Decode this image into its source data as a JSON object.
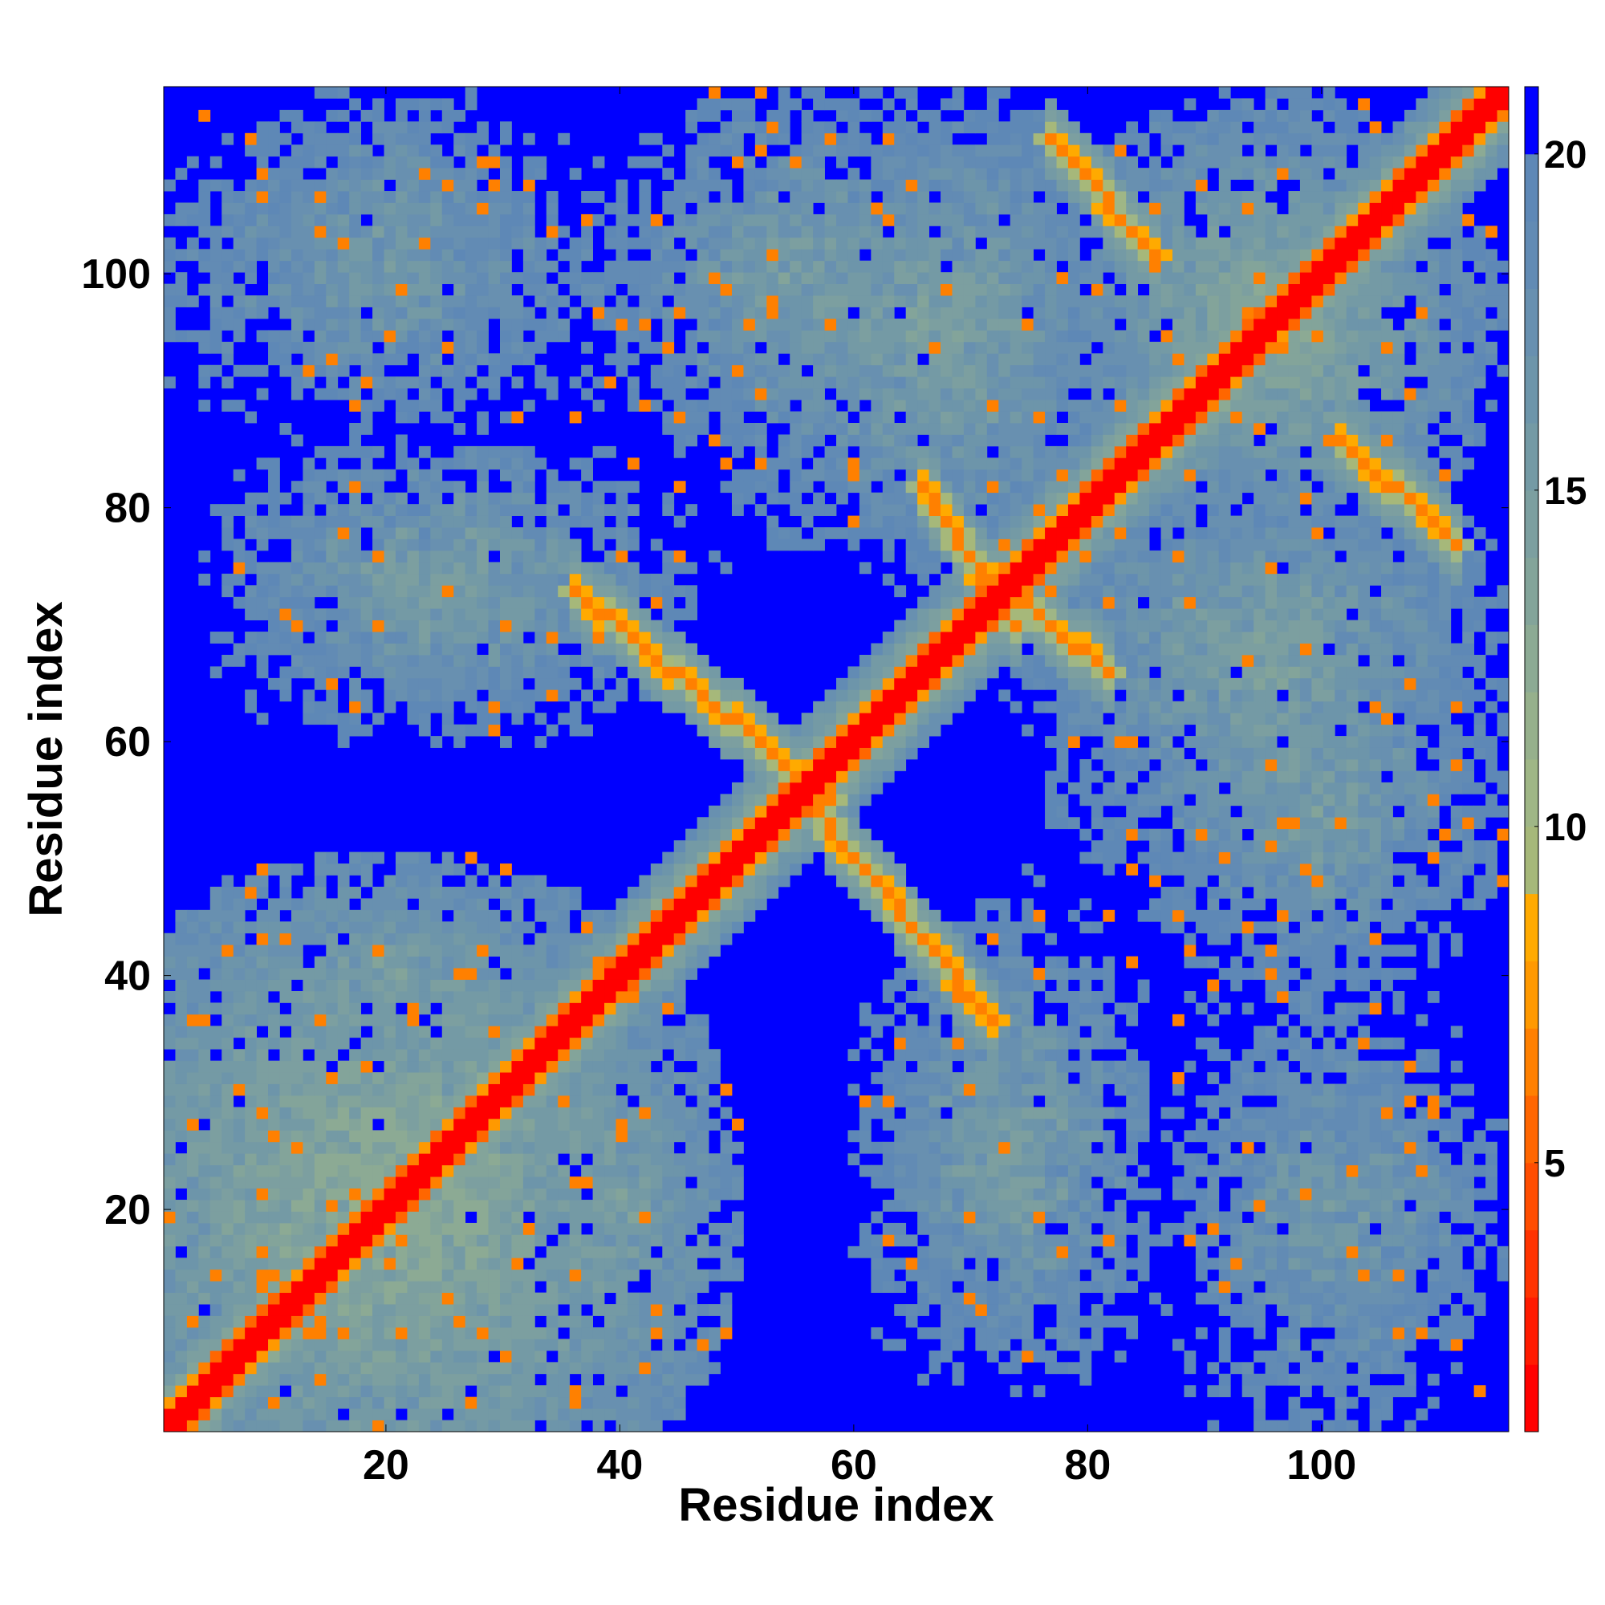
{
  "chart_data": {
    "type": "heatmap",
    "title": "",
    "xlabel": "Residue index",
    "ylabel": "Residue index",
    "n_residues": 116,
    "xlim": [
      1,
      116
    ],
    "ylim": [
      1,
      116
    ],
    "xticks": [
      20,
      40,
      60,
      80,
      100
    ],
    "yticks": [
      20,
      40,
      60,
      80,
      100
    ],
    "x_tick_labels": [
      "20",
      "40",
      "60",
      "80",
      "100"
    ],
    "y_tick_labels": [
      "20",
      "40",
      "60",
      "80",
      "100"
    ],
    "value_range": [
      1,
      21
    ],
    "colorbar": {
      "ticks": [
        5,
        10,
        15,
        20
      ],
      "tick_labels": [
        "5",
        "10",
        "15",
        "20"
      ],
      "levels": [
        {
          "from": 1,
          "to": 2,
          "color": "#ff0000"
        },
        {
          "from": 2,
          "to": 3,
          "color": "#ff1a00"
        },
        {
          "from": 3,
          "to": 4,
          "color": "#ff3300"
        },
        {
          "from": 4,
          "to": 5,
          "color": "#ff4d00"
        },
        {
          "from": 5,
          "to": 6,
          "color": "#ff6600"
        },
        {
          "from": 6,
          "to": 7,
          "color": "#ff8000"
        },
        {
          "from": 7,
          "to": 8,
          "color": "#ff9900"
        },
        {
          "from": 8,
          "to": 9,
          "color": "#ffaa00"
        },
        {
          "from": 9,
          "to": 10,
          "color": "#a6b87a"
        },
        {
          "from": 10,
          "to": 11,
          "color": "#9fb686"
        },
        {
          "from": 11,
          "to": 12,
          "color": "#96b08c"
        },
        {
          "from": 12,
          "to": 13,
          "color": "#8caa94"
        },
        {
          "from": 13,
          "to": 14,
          "color": "#83a49a"
        },
        {
          "from": 14,
          "to": 15,
          "color": "#7c9fa0"
        },
        {
          "from": 15,
          "to": 16,
          "color": "#749aa5"
        },
        {
          "from": 16,
          "to": 17,
          "color": "#6d95aa"
        },
        {
          "from": 17,
          "to": 18,
          "color": "#6890b0"
        },
        {
          "from": 18,
          "to": 19,
          "color": "#628bb4"
        },
        {
          "from": 19,
          "to": 20,
          "color": "#5e88b6"
        },
        {
          "from": 20,
          "to": 21,
          "color": "#0000ff"
        }
      ]
    },
    "diagonal_band": {
      "width_residues": 3,
      "value": 1
    },
    "secondary_structure_contacts": [
      {
        "kind": "antiparallel",
        "i_range": [
          36,
          58
        ],
        "j_range": [
          55,
          73
        ],
        "value": 6
      },
      {
        "kind": "antiparallel",
        "i_range": [
          55,
          72
        ],
        "j_range": [
          36,
          56
        ],
        "value": 6
      },
      {
        "kind": "antiparallel",
        "i_range": [
          66,
          74
        ],
        "j_range": [
          70,
          82
        ],
        "value": 6
      },
      {
        "kind": "antiparallel",
        "i_range": [
          72,
          82
        ],
        "j_range": [
          66,
          74
        ],
        "value": 6
      },
      {
        "kind": "antiparallel",
        "i_range": [
          102,
          112
        ],
        "j_range": [
          77,
          86
        ],
        "value": 6
      },
      {
        "kind": "antiparallel",
        "i_range": [
          77,
          86
        ],
        "j_range": [
          102,
          112
        ],
        "value": 6
      }
    ],
    "contact_clusters": [
      {
        "x": [
          1,
          60
        ],
        "y": [
          1,
          60
        ],
        "center": [
          20,
          20
        ],
        "value": 13
      },
      {
        "x": [
          4,
          50
        ],
        "y": [
          60,
          85
        ],
        "center": [
          25,
          75
        ],
        "value": 15
      },
      {
        "x": [
          6,
          34
        ],
        "y": [
          86,
          116
        ],
        "center": [
          20,
          105
        ],
        "value": 16
      },
      {
        "x": [
          35,
          70
        ],
        "y": [
          82,
          116
        ],
        "center": [
          55,
          100
        ],
        "value": 15
      },
      {
        "x": [
          58,
          84
        ],
        "y": [
          68,
          116
        ],
        "center": [
          70,
          95
        ],
        "value": 15
      },
      {
        "x": [
          76,
          116
        ],
        "y": [
          76,
          116
        ],
        "center": [
          96,
          96
        ],
        "value": 14
      },
      {
        "x": [
          60,
          85
        ],
        "y": [
          1,
          45
        ],
        "center": [
          70,
          25
        ],
        "value": 16
      },
      {
        "x": [
          84,
          116
        ],
        "y": [
          1,
          58
        ],
        "center": [
          100,
          20
        ],
        "value": 16
      },
      {
        "x": [
          75,
          116
        ],
        "y": [
          40,
          84
        ],
        "center": [
          95,
          65
        ],
        "value": 15
      },
      {
        "x": [
          30,
          50
        ],
        "y": [
          1,
          45
        ],
        "center": [
          40,
          20
        ],
        "value": 15
      }
    ]
  }
}
